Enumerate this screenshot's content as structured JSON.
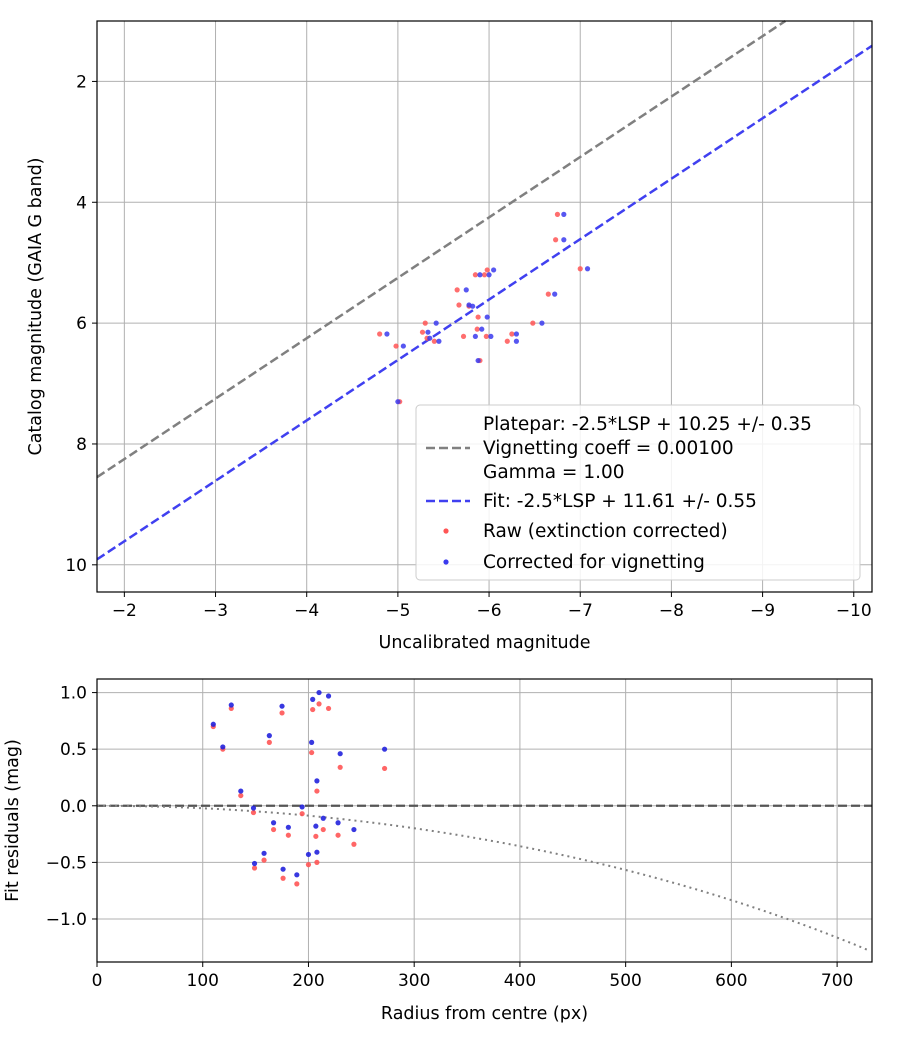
{
  "chart_data": [
    {
      "type": "scatter",
      "xlabel": "Uncalibrated magnitude",
      "ylabel": "Catalog magnitude (GAIA G band)",
      "xlim": [
        -1.7,
        -10.2
      ],
      "ylim": [
        10.45,
        1.0
      ],
      "x_inverted": true,
      "y_inverted": true,
      "xticks": [
        -2,
        -3,
        -4,
        -5,
        -6,
        -7,
        -8,
        -9,
        -10
      ],
      "xtick_labels": [
        "−2",
        "−3",
        "−4",
        "−5",
        "−6",
        "−7",
        "−8",
        "−9",
        "−10"
      ],
      "yticks": [
        2,
        4,
        6,
        8,
        10
      ],
      "ytick_labels": [
        "2",
        "4",
        "6",
        "8",
        "10"
      ],
      "grid": true,
      "legend_position": "lower-right",
      "lines": [
        {
          "name": "Platepar: -2.5*LSP + 10.25 +/- 0.35\nVignetting coeff = 0.00100\nGamma = 1.00",
          "slope": 1.0,
          "intercept": 10.25,
          "color": "#808080",
          "style": "dashed"
        },
        {
          "name": "Fit: -2.5*LSP + 11.61 +/- 0.55",
          "slope": 1.0,
          "intercept": 11.61,
          "color": "#4040f0",
          "style": "dashed"
        }
      ],
      "series": [
        {
          "name": "Raw (extinction corrected)",
          "color": "#ff5555",
          "points": [
            [
              -4.8,
              6.18
            ],
            [
              -4.98,
              6.38
            ],
            [
              -5.02,
              7.3
            ],
            [
              -5.27,
              6.15
            ],
            [
              -5.3,
              6.0
            ],
            [
              -5.32,
              6.25
            ],
            [
              -5.4,
              6.3
            ],
            [
              -5.65,
              5.45
            ],
            [
              -5.67,
              5.7
            ],
            [
              -5.72,
              6.22
            ],
            [
              -5.78,
              5.72
            ],
            [
              -5.85,
              5.2
            ],
            [
              -5.87,
              6.1
            ],
            [
              -5.88,
              5.9
            ],
            [
              -5.9,
              6.62
            ],
            [
              -5.95,
              5.2
            ],
            [
              -5.97,
              6.22
            ],
            [
              -5.98,
              5.12
            ],
            [
              -6.2,
              6.3
            ],
            [
              -6.25,
              6.18
            ],
            [
              -6.48,
              6.0
            ],
            [
              -6.65,
              5.52
            ],
            [
              -6.75,
              4.2
            ],
            [
              -6.73,
              4.62
            ],
            [
              -7.0,
              5.1
            ]
          ]
        },
        {
          "name": "Corrected for vignetting",
          "color": "#3a3aee",
          "points": [
            [
              -4.88,
              6.18
            ],
            [
              -5.06,
              6.38
            ],
            [
              -5.0,
              7.3
            ],
            [
              -5.33,
              6.15
            ],
            [
              -5.42,
              6.0
            ],
            [
              -5.35,
              6.25
            ],
            [
              -5.45,
              6.3
            ],
            [
              -5.75,
              5.45
            ],
            [
              -5.78,
              5.7
            ],
            [
              -5.85,
              6.22
            ],
            [
              -5.82,
              5.72
            ],
            [
              -5.9,
              5.2
            ],
            [
              -5.92,
              6.1
            ],
            [
              -5.98,
              5.9
            ],
            [
              -5.88,
              6.62
            ],
            [
              -6.0,
              5.2
            ],
            [
              -6.02,
              6.22
            ],
            [
              -6.05,
              5.12
            ],
            [
              -6.3,
              6.3
            ],
            [
              -6.3,
              6.18
            ],
            [
              -6.58,
              6.0
            ],
            [
              -6.72,
              5.52
            ],
            [
              -6.82,
              4.2
            ],
            [
              -6.82,
              4.62
            ],
            [
              -7.08,
              5.1
            ]
          ]
        }
      ]
    },
    {
      "type": "scatter",
      "xlabel": "Radius from centre (px)",
      "ylabel": "Fit residuals (mag)",
      "xlim": [
        0,
        733
      ],
      "ylim": [
        -1.38,
        1.12
      ],
      "xticks": [
        0,
        100,
        200,
        300,
        400,
        500,
        600,
        700
      ],
      "xtick_labels": [
        "0",
        "100",
        "200",
        "300",
        "400",
        "500",
        "600",
        "700"
      ],
      "yticks": [
        1.0,
        0.5,
        0.0,
        -0.5,
        -1.0
      ],
      "ytick_labels": [
        "1.0",
        "0.5",
        "0.0",
        "−0.5",
        "−1.0"
      ],
      "grid": true,
      "lines": [
        {
          "type": "hline",
          "y": 0.0,
          "color": "#555555",
          "style": "dashed"
        },
        {
          "type": "vignetting_curve",
          "coeff": 0.001,
          "color": "#808080",
          "style": "dotted"
        }
      ],
      "series": [
        {
          "name": "Raw (extinction corrected)",
          "color": "#ff5555",
          "points": [
            [
              110,
              0.7
            ],
            [
              119,
              0.5
            ],
            [
              127,
              0.86
            ],
            [
              136,
              0.09
            ],
            [
              148,
              -0.06
            ],
            [
              149,
              -0.55
            ],
            [
              158,
              -0.48
            ],
            [
              163,
              0.56
            ],
            [
              167,
              -0.21
            ],
            [
              175,
              0.82
            ],
            [
              176,
              -0.64
            ],
            [
              181,
              -0.26
            ],
            [
              189,
              -0.69
            ],
            [
              194,
              -0.07
            ],
            [
              200,
              -0.52
            ],
            [
              203,
              0.47
            ],
            [
              204,
              0.85
            ],
            [
              207,
              -0.27
            ],
            [
              208,
              0.13
            ],
            [
              208,
              -0.5
            ],
            [
              210,
              0.9
            ],
            [
              214,
              -0.21
            ],
            [
              219,
              0.86
            ],
            [
              228,
              -0.26
            ],
            [
              230,
              0.34
            ],
            [
              243,
              -0.34
            ],
            [
              272,
              0.33
            ]
          ]
        },
        {
          "name": "Corrected for vignetting",
          "color": "#2222dd",
          "points": [
            [
              110,
              0.72
            ],
            [
              119,
              0.52
            ],
            [
              127,
              0.89
            ],
            [
              136,
              0.13
            ],
            [
              148,
              -0.02
            ],
            [
              149,
              -0.51
            ],
            [
              158,
              -0.42
            ],
            [
              163,
              0.62
            ],
            [
              167,
              -0.15
            ],
            [
              175,
              0.88
            ],
            [
              176,
              -0.56
            ],
            [
              181,
              -0.19
            ],
            [
              189,
              -0.61
            ],
            [
              194,
              -0.01
            ],
            [
              200,
              -0.43
            ],
            [
              203,
              0.56
            ],
            [
              204,
              0.94
            ],
            [
              207,
              -0.18
            ],
            [
              208,
              0.22
            ],
            [
              208,
              -0.41
            ],
            [
              210,
              1.0
            ],
            [
              214,
              -0.11
            ],
            [
              219,
              0.97
            ],
            [
              228,
              -0.15
            ],
            [
              230,
              0.46
            ],
            [
              243,
              -0.21
            ],
            [
              272,
              0.5
            ]
          ]
        }
      ]
    }
  ]
}
